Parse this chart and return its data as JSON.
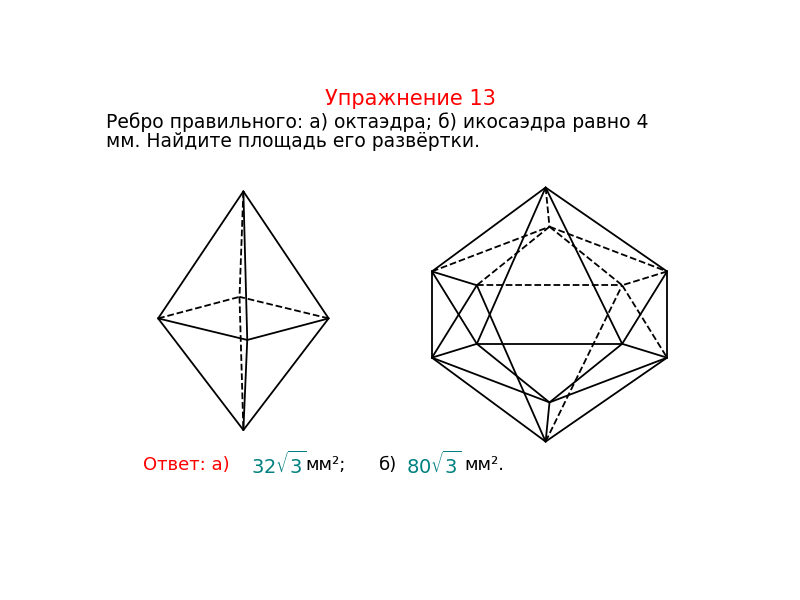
{
  "title": "Упражнение 13",
  "title_color": "#ff0000",
  "title_fontsize": 15,
  "problem_text_line1": "Ребро правильного: а) октаэдра; б) икосаэдра равно 4",
  "problem_text_line2": "мм. Найдите площадь его развёртки.",
  "problem_fontsize": 13.5,
  "answer_color": "#ff0000",
  "answer_math_color": "#008080",
  "answer_fontsize": 12,
  "bg_color": "#ffffff",
  "line_color": "#000000"
}
